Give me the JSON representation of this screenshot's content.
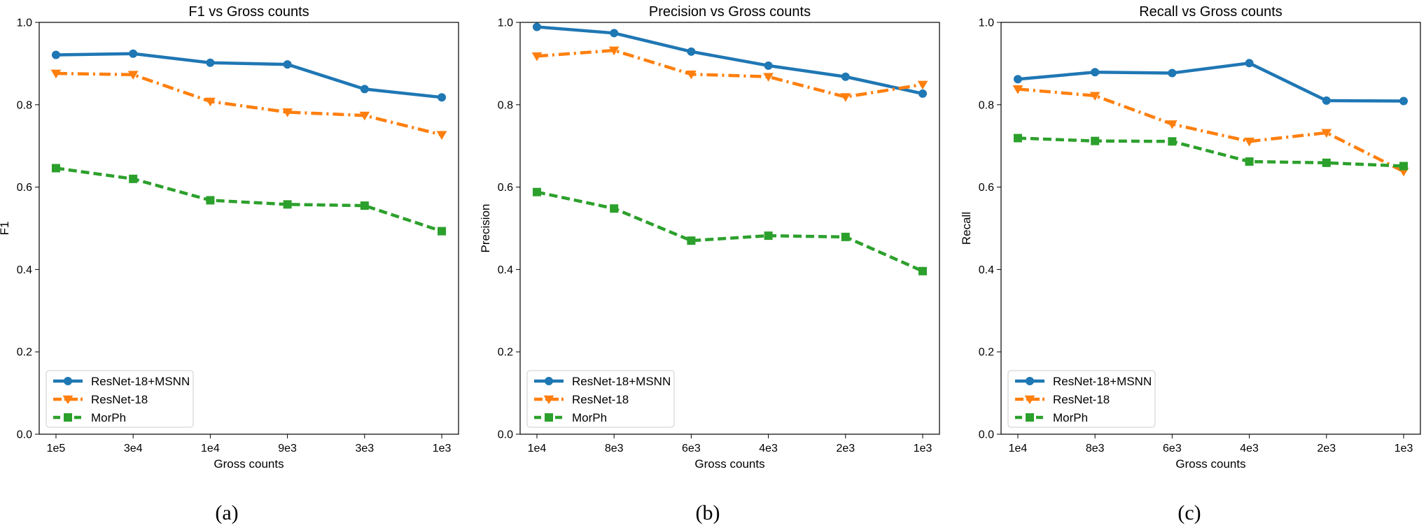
{
  "colors": {
    "resnet_msnn": "#1f77b4",
    "resnet": "#ff7f0e",
    "morph": "#2ca02c"
  },
  "chart_data": [
    {
      "type": "line",
      "title": "F1 vs Gross counts",
      "xlabel": "Gross counts",
      "ylabel": "F1",
      "caption": "(a)",
      "categories": [
        "1e5",
        "3e4",
        "1e4",
        "9e3",
        "3e3",
        "1e3"
      ],
      "ylim": [
        0.0,
        1.0
      ],
      "yticks": [
        "0.0",
        "0.2",
        "0.4",
        "0.6",
        "0.8",
        "1.0"
      ],
      "legend_position": "lower-left",
      "series": [
        {
          "name": "ResNet-18+MSNN",
          "values": [
            0.921,
            0.924,
            0.902,
            0.898,
            0.838,
            0.818
          ]
        },
        {
          "name": "ResNet-18",
          "values": [
            0.876,
            0.873,
            0.808,
            0.782,
            0.774,
            0.727
          ]
        },
        {
          "name": "MorPh",
          "values": [
            0.646,
            0.62,
            0.568,
            0.558,
            0.555,
            0.493
          ]
        }
      ]
    },
    {
      "type": "line",
      "title": "Precision vs Gross counts",
      "xlabel": "Gross counts",
      "ylabel": "Precision",
      "caption": "(b)",
      "categories": [
        "1e4",
        "8e3",
        "6e3",
        "4e3",
        "2e3",
        "1e3"
      ],
      "ylim": [
        0.0,
        1.0
      ],
      "yticks": [
        "0.0",
        "0.2",
        "0.4",
        "0.6",
        "0.8",
        "1.0"
      ],
      "legend_position": "lower-left",
      "series": [
        {
          "name": "ResNet-18+MSNN",
          "values": [
            0.989,
            0.974,
            0.929,
            0.895,
            0.868,
            0.827
          ]
        },
        {
          "name": "ResNet-18",
          "values": [
            0.918,
            0.932,
            0.874,
            0.868,
            0.819,
            0.849
          ]
        },
        {
          "name": "MorPh",
          "values": [
            0.588,
            0.548,
            0.47,
            0.482,
            0.479,
            0.396
          ]
        }
      ]
    },
    {
      "type": "line",
      "title": "Recall vs Gross counts",
      "xlabel": "Gross counts",
      "ylabel": "Recall",
      "caption": "(c)",
      "categories": [
        "1e4",
        "8e3",
        "6e3",
        "4e3",
        "2e3",
        "1e3"
      ],
      "ylim": [
        0.0,
        1.0
      ],
      "yticks": [
        "0.0",
        "0.2",
        "0.4",
        "0.6",
        "0.8",
        "1.0"
      ],
      "legend_position": "lower-left",
      "series": [
        {
          "name": "ResNet-18+MSNN",
          "values": [
            0.862,
            0.879,
            0.877,
            0.901,
            0.81,
            0.809
          ]
        },
        {
          "name": "ResNet-18",
          "values": [
            0.838,
            0.822,
            0.753,
            0.711,
            0.732,
            0.638
          ]
        },
        {
          "name": "MorPh",
          "values": [
            0.719,
            0.712,
            0.711,
            0.662,
            0.659,
            0.651
          ]
        }
      ]
    }
  ]
}
